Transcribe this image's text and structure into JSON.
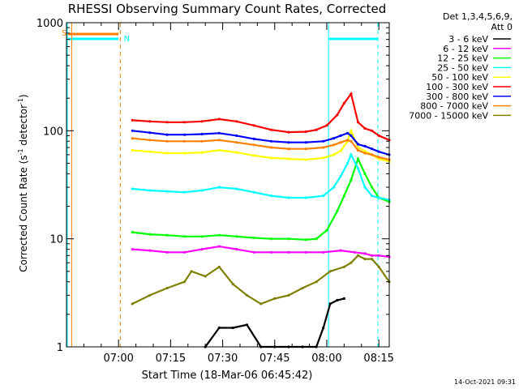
{
  "chart_data": {
    "type": "line",
    "title": "RHESSI Observing Summary Count Rates, Corrected",
    "ylabel_prefix": "Corrected Count Rate (s",
    "ylabel_sup": "-1",
    "ylabel_mid": " detector",
    "ylabel_sup2": "-1",
    "ylabel_suffix": ")",
    "xlabel": "Start Time (18-Mar-06 06:45:42)",
    "xlim_minutes_after_0645": [
      0,
      93
    ],
    "ylim": [
      1,
      1000
    ],
    "yscale": "log",
    "x_ticks": [
      {
        "minute": 15,
        "label": "07:00"
      },
      {
        "minute": 30,
        "label": "07:15"
      },
      {
        "minute": 45,
        "label": "07:30"
      },
      {
        "minute": 60,
        "label": "07:45"
      },
      {
        "minute": 75,
        "label": "08:00"
      },
      {
        "minute": 90,
        "label": "08:15"
      }
    ],
    "y_ticks": [
      {
        "value": 1,
        "label": "1"
      },
      {
        "value": 10,
        "label": "10"
      },
      {
        "value": 100,
        "label": "100"
      },
      {
        "value": 1000,
        "label": "1000"
      }
    ],
    "legend_header": [
      "Det 1,3,4,5,6,9,",
      "Att 0"
    ],
    "legend_placement": "right",
    "footer_date": "14-Oct-2021 09:31",
    "flags": {
      "saa_label": "S",
      "night_label": "N"
    },
    "series": [
      {
        "name": "3 - 6 keV",
        "color": "#000000",
        "x": [
          40,
          44,
          48,
          52,
          56,
          60,
          64,
          68,
          72,
          74,
          76,
          78,
          80
        ],
        "y": [
          1.0,
          1.5,
          1.5,
          1.6,
          1.0,
          1.0,
          1.0,
          1.0,
          1.0,
          1.5,
          2.5,
          2.7,
          2.8
        ]
      },
      {
        "name": "6 - 12 keV",
        "color": "#ff00ff",
        "x": [
          19,
          24,
          29,
          34,
          39,
          44,
          49,
          54,
          59,
          64,
          69,
          74,
          79,
          83,
          86,
          88,
          90,
          93
        ],
        "y": [
          8.0,
          7.8,
          7.5,
          7.5,
          8.0,
          8.5,
          8.0,
          7.5,
          7.5,
          7.5,
          7.5,
          7.5,
          7.8,
          7.5,
          7.3,
          7.0,
          7.0,
          6.8
        ]
      },
      {
        "name": "12 - 25 keV",
        "color": "#00ff00",
        "x": [
          19,
          24,
          29,
          34,
          39,
          44,
          49,
          54,
          59,
          64,
          69,
          72,
          75,
          78,
          80,
          82,
          84,
          86,
          88,
          90,
          93
        ],
        "y": [
          11.5,
          11.0,
          10.8,
          10.5,
          10.5,
          10.8,
          10.5,
          10.2,
          10.0,
          10.0,
          9.8,
          10.0,
          12.0,
          18.0,
          25.0,
          35.0,
          55.0,
          40.0,
          30.0,
          24.0,
          22.0
        ]
      },
      {
        "name": "25 - 50 keV",
        "color": "#00ffff",
        "x": [
          19,
          24,
          29,
          34,
          39,
          44,
          49,
          54,
          59,
          64,
          69,
          74,
          77,
          79,
          81,
          82,
          84,
          86,
          88,
          90,
          93
        ],
        "y": [
          29,
          28,
          27.5,
          27,
          28,
          30,
          29,
          27,
          25,
          24,
          24,
          25,
          30,
          38,
          50,
          60,
          45,
          30,
          25,
          24,
          23
        ]
      },
      {
        "name": "50 - 100 keV",
        "color": "#ffff00",
        "x": [
          19,
          24,
          29,
          34,
          39,
          44,
          49,
          54,
          59,
          64,
          69,
          74,
          77,
          79,
          81,
          82,
          84,
          86,
          88,
          90,
          93
        ],
        "y": [
          66,
          64,
          62,
          62,
          63,
          66,
          63,
          59,
          56,
          55,
          54,
          56,
          60,
          65,
          80,
          100,
          70,
          65,
          60,
          55,
          52
        ]
      },
      {
        "name": "100 - 300 keV",
        "color": "#ff0000",
        "x": [
          19,
          24,
          29,
          34,
          39,
          44,
          49,
          54,
          59,
          64,
          69,
          72,
          75,
          78,
          80,
          82,
          84,
          86,
          88,
          90,
          93
        ],
        "y": [
          125,
          122,
          120,
          120,
          122,
          128,
          122,
          112,
          102,
          97,
          98,
          102,
          112,
          140,
          180,
          220,
          120,
          105,
          100,
          90,
          82
        ]
      },
      {
        "name": "300 - 800 keV",
        "color": "#0000ff",
        "x": [
          19,
          24,
          29,
          34,
          39,
          44,
          49,
          54,
          59,
          64,
          69,
          74,
          77,
          79,
          81,
          82,
          84,
          86,
          88,
          90,
          93
        ],
        "y": [
          100,
          96,
          92,
          92,
          93,
          95,
          90,
          84,
          80,
          78,
          78,
          80,
          85,
          90,
          95,
          90,
          75,
          72,
          68,
          64,
          60
        ]
      },
      {
        "name": "800 - 7000 keV",
        "color": "#ff8000",
        "x": [
          19,
          24,
          29,
          34,
          39,
          44,
          49,
          54,
          59,
          64,
          69,
          74,
          77,
          79,
          81,
          82,
          84,
          86,
          88,
          90,
          93
        ],
        "y": [
          85,
          82,
          80,
          80,
          80,
          82,
          78,
          74,
          70,
          68,
          68,
          70,
          74,
          78,
          82,
          80,
          66,
          62,
          60,
          57,
          54
        ]
      },
      {
        "name": "7000 - 15000 keV",
        "color": "#808000",
        "x": [
          19,
          24,
          29,
          34,
          36,
          40,
          44,
          48,
          52,
          56,
          60,
          64,
          68,
          72,
          76,
          80,
          82,
          84,
          86,
          88,
          90,
          93
        ],
        "y": [
          2.5,
          3.0,
          3.5,
          4.0,
          5.0,
          4.5,
          5.5,
          3.8,
          3.0,
          2.5,
          2.8,
          3.0,
          3.5,
          4.0,
          5.0,
          5.5,
          6.0,
          7.0,
          6.5,
          6.5,
          5.5,
          4.0
        ]
      }
    ]
  }
}
